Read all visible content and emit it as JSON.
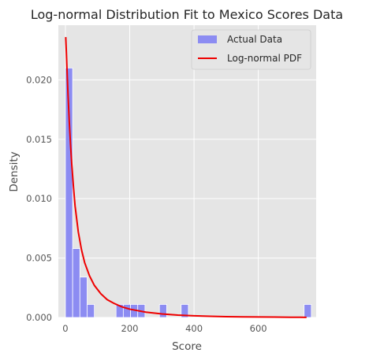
{
  "chart_data": {
    "type": "bar",
    "title": "Log-normal Distribution Fit to Mexico Scores Data",
    "xlabel": "Score",
    "ylabel": "Density",
    "xlim": [
      -22,
      780
    ],
    "ylim": [
      0,
      0.0246
    ],
    "x_ticks": [
      0,
      200,
      400,
      600
    ],
    "x_tick_labels": [
      "0",
      "200",
      "400",
      "600"
    ],
    "y_ticks": [
      0.0,
      0.005,
      0.01,
      0.015,
      0.02
    ],
    "y_tick_labels": [
      "0.000",
      "0.005",
      "0.010",
      "0.015",
      "0.020"
    ],
    "grid": true,
    "legend_position": "top-right",
    "colors": {
      "background": "#e5e5e5",
      "grid": "#ffffff",
      "bar": "#8c8cf2",
      "bar_edge": "#ffffff",
      "line": "#ee0000"
    },
    "histogram": {
      "name": "Actual Data",
      "bin_width": 22.5,
      "bin_start": 0,
      "densities": [
        0.021,
        0.0058,
        0.0034,
        0.0011,
        0,
        0,
        0,
        0.0011,
        0.0011,
        0.0011,
        0.0011,
        0,
        0,
        0.0011,
        0,
        0,
        0.0011,
        0,
        0,
        0,
        0,
        0,
        0,
        0,
        0,
        0,
        0,
        0,
        0,
        0,
        0,
        0,
        0,
        0.0011
      ]
    },
    "series": [
      {
        "name": "Log-normal PDF",
        "type": "line",
        "x": [
          1,
          3,
          5,
          8,
          12,
          16,
          20,
          25,
          30,
          40,
          50,
          60,
          75,
          90,
          110,
          130,
          150,
          175,
          200,
          250,
          300,
          350,
          400,
          450,
          500,
          550,
          600,
          650,
          700,
          750
        ],
        "y": [
          0.0236,
          0.0223,
          0.0208,
          0.0188,
          0.0165,
          0.0145,
          0.0128,
          0.011,
          0.0094,
          0.0072,
          0.0057,
          0.0046,
          0.0035,
          0.0027,
          0.002,
          0.0015,
          0.0012,
          0.0009,
          0.0007,
          0.00045,
          0.0003,
          0.0002,
          0.00014,
          0.0001,
          7e-05,
          5e-05,
          4e-05,
          3e-05,
          2e-05,
          1e-05
        ]
      }
    ]
  }
}
